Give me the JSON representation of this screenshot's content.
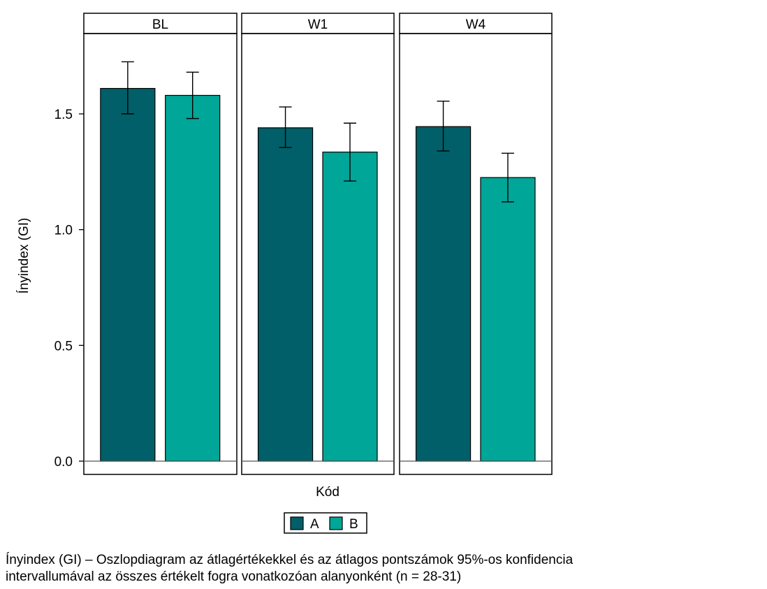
{
  "chart_data": {
    "type": "bar",
    "panels": [
      "BL",
      "W1",
      "W4"
    ],
    "series": [
      {
        "name": "A",
        "color": "#005f69",
        "values": [
          1.61,
          1.44,
          1.445
        ],
        "ci_low": [
          1.5,
          1.355,
          1.34
        ],
        "ci_high": [
          1.725,
          1.53,
          1.555
        ]
      },
      {
        "name": "B",
        "color": "#00a698",
        "values": [
          1.58,
          1.335,
          1.225
        ],
        "ci_low": [
          1.48,
          1.21,
          1.12
        ],
        "ci_high": [
          1.68,
          1.46,
          1.33
        ]
      }
    ],
    "ylim": [
      0,
      1.83
    ],
    "yticks": [
      "0.0",
      "0.5",
      "1.0",
      "1.5"
    ],
    "xlabel": "Kód",
    "ylabel": "Ínyindex (GI)",
    "legend": [
      "A",
      "B"
    ]
  },
  "caption": {
    "line1": "Ínyindex (GI) – Oszlopdiagram az átlagértékekkel és az átlagos pontszámok 95%-os konfidencia",
    "line2": "intervallumával az összes értékelt fogra vonatkozóan alanyonként (n = 28-31)"
  }
}
